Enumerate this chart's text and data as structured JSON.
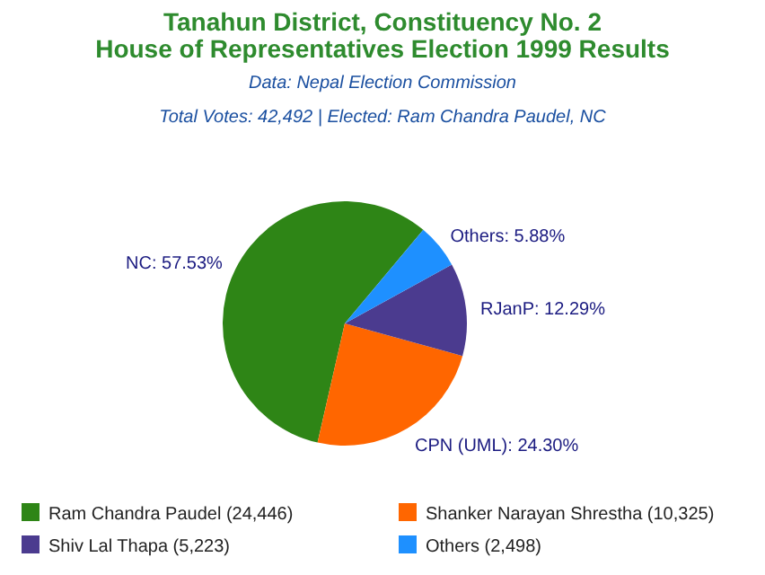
{
  "chart_data": {
    "type": "pie",
    "title": "Tanahun District, Constituency No. 2\nHouse of Representatives Election 1999 Results",
    "subtitle": "Data: Nepal Election Commission",
    "annotations": [
      "Total Votes: 42,492 | Elected: Ram Chandra Paudel, NC"
    ],
    "categories": [
      "Ram Chandra Paudel (24,446)",
      "Shanker Narayan Shrestha (10,325)",
      "Shiv Lal Thapa (5,223)",
      "Others (2,498)"
    ],
    "values": [
      57.53,
      24.3,
      12.29,
      5.88
    ],
    "colors": [
      "#2e8516",
      "#ff6600",
      "#4b3b8f",
      "#1e90ff"
    ],
    "value_labels": [
      "NC: 57.53%",
      "CPN (UML): 24.30%",
      "RJanP: 12.29%",
      "Others: 5.88%"
    ],
    "legend": "bottom"
  }
}
